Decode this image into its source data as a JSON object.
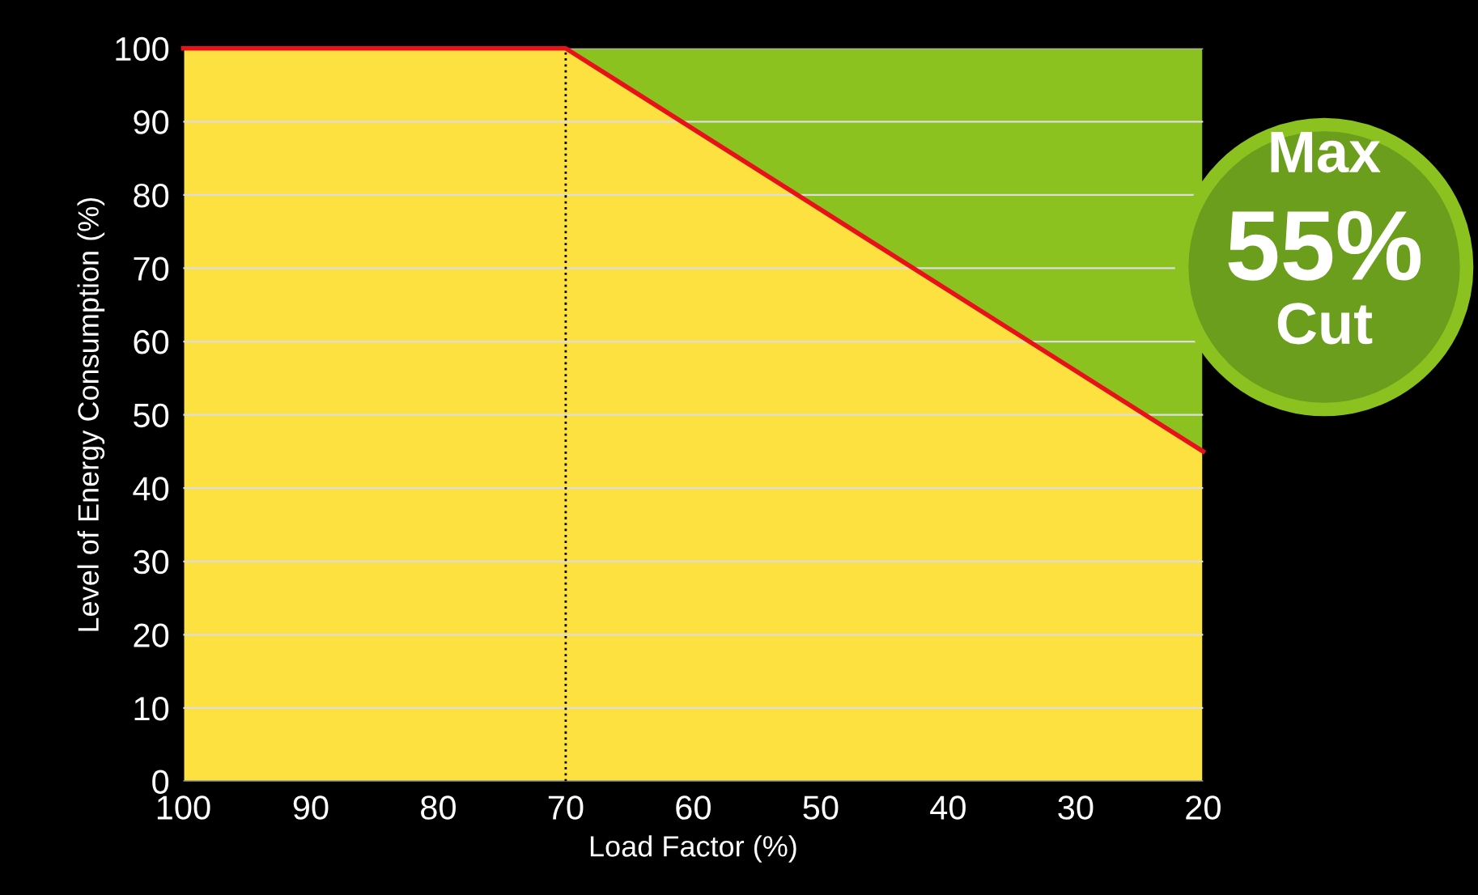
{
  "chart_data": {
    "type": "area",
    "xlabel": "Load Factor (%)",
    "ylabel": "Level of Energy Consumption (%)",
    "x": [
      100,
      70,
      20
    ],
    "series": [
      {
        "color": "#fde140",
        "values": [
          100,
          100,
          45
        ]
      },
      {
        "color": "#8cc21f",
        "values": [
          0,
          0,
          55
        ]
      }
    ],
    "stacked": true,
    "xlim": [
      100,
      20
    ],
    "xticks": [
      100,
      90,
      80,
      70,
      60,
      50,
      40,
      30,
      20
    ],
    "ylim": [
      0,
      100
    ],
    "yticks": [
      0,
      10,
      20,
      30,
      40,
      50,
      60,
      70,
      80,
      90,
      100
    ],
    "grid": "y",
    "legend": false,
    "ref_lines": [
      {
        "axis": "x",
        "value": 70,
        "color": "#000000",
        "line_style": "dotted"
      }
    ],
    "annotations": [
      "Max",
      "55%",
      "Cut"
    ]
  }
}
